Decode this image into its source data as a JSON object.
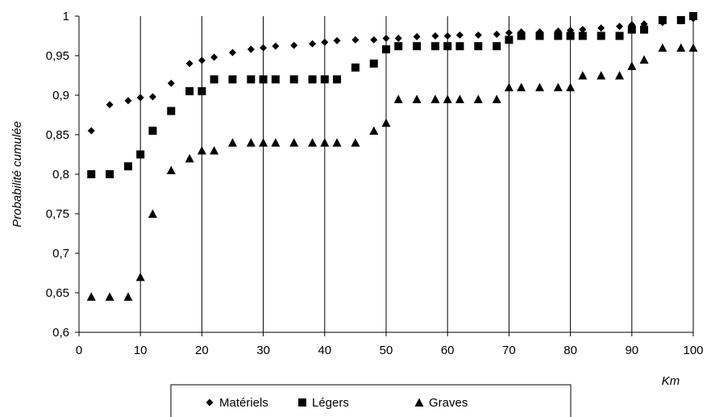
{
  "chart_data": {
    "type": "scatter",
    "title": "",
    "xlabel": "Km",
    "ylabel": "Probabilité cumulée",
    "xlim": [
      0,
      100
    ],
    "ylim": [
      0.6,
      1
    ],
    "x_ticks": [
      0,
      10,
      20,
      30,
      40,
      50,
      60,
      70,
      80,
      90,
      100
    ],
    "y_ticks": [
      0.6,
      0.65,
      0.7,
      0.75,
      0.8,
      0.85,
      0.9,
      0.95,
      1
    ],
    "x_tick_labels": [
      "0",
      "10",
      "20",
      "30",
      "40",
      "50",
      "60",
      "70",
      "80",
      "90",
      "100"
    ],
    "y_tick_labels": [
      "0,6",
      "0,65",
      "0,7",
      "0,75",
      "0,8",
      "0,85",
      "0,9",
      "0,95",
      "1"
    ],
    "grid": "vertical",
    "legend_position": "bottom",
    "series": [
      {
        "name": "Matériels",
        "marker": "diamond",
        "color": "#000000",
        "points": [
          [
            2,
            0.855
          ],
          [
            5,
            0.888
          ],
          [
            8,
            0.893
          ],
          [
            10,
            0.897
          ],
          [
            12,
            0.898
          ],
          [
            15,
            0.915
          ],
          [
            18,
            0.94
          ],
          [
            20,
            0.944
          ],
          [
            22,
            0.948
          ],
          [
            25,
            0.954
          ],
          [
            28,
            0.958
          ],
          [
            30,
            0.96
          ],
          [
            32,
            0.962
          ],
          [
            35,
            0.963
          ],
          [
            38,
            0.965
          ],
          [
            40,
            0.967
          ],
          [
            42,
            0.969
          ],
          [
            45,
            0.97
          ],
          [
            48,
            0.97
          ],
          [
            50,
            0.972
          ],
          [
            52,
            0.972
          ],
          [
            55,
            0.974
          ],
          [
            58,
            0.975
          ],
          [
            60,
            0.975
          ],
          [
            62,
            0.976
          ],
          [
            65,
            0.976
          ],
          [
            68,
            0.977
          ],
          [
            70,
            0.979
          ],
          [
            72,
            0.98
          ],
          [
            75,
            0.98
          ],
          [
            78,
            0.981
          ],
          [
            80,
            0.982
          ],
          [
            82,
            0.983
          ],
          [
            85,
            0.985
          ],
          [
            88,
            0.987
          ],
          [
            90,
            0.989
          ],
          [
            92,
            0.99
          ],
          [
            95,
            0.992
          ],
          [
            98,
            0.994
          ],
          [
            100,
            0.997
          ]
        ]
      },
      {
        "name": "Légers",
        "marker": "square",
        "color": "#000000",
        "points": [
          [
            2,
            0.8
          ],
          [
            5,
            0.8
          ],
          [
            8,
            0.81
          ],
          [
            10,
            0.825
          ],
          [
            12,
            0.855
          ],
          [
            15,
            0.88
          ],
          [
            18,
            0.905
          ],
          [
            20,
            0.905
          ],
          [
            22,
            0.92
          ],
          [
            25,
            0.92
          ],
          [
            28,
            0.92
          ],
          [
            30,
            0.92
          ],
          [
            32,
            0.92
          ],
          [
            35,
            0.92
          ],
          [
            38,
            0.92
          ],
          [
            40,
            0.92
          ],
          [
            42,
            0.92
          ],
          [
            45,
            0.935
          ],
          [
            48,
            0.94
          ],
          [
            50,
            0.958
          ],
          [
            52,
            0.962
          ],
          [
            55,
            0.962
          ],
          [
            58,
            0.962
          ],
          [
            60,
            0.962
          ],
          [
            62,
            0.962
          ],
          [
            65,
            0.962
          ],
          [
            68,
            0.962
          ],
          [
            70,
            0.97
          ],
          [
            72,
            0.975
          ],
          [
            75,
            0.975
          ],
          [
            78,
            0.975
          ],
          [
            80,
            0.975
          ],
          [
            82,
            0.975
          ],
          [
            85,
            0.975
          ],
          [
            88,
            0.975
          ],
          [
            90,
            0.983
          ],
          [
            92,
            0.983
          ],
          [
            95,
            0.995
          ],
          [
            98,
            0.995
          ],
          [
            100,
            1.0
          ]
        ]
      },
      {
        "name": "Graves",
        "marker": "triangle",
        "color": "#000000",
        "points": [
          [
            2,
            0.645
          ],
          [
            5,
            0.645
          ],
          [
            8,
            0.645
          ],
          [
            10,
            0.67
          ],
          [
            12,
            0.75
          ],
          [
            15,
            0.805
          ],
          [
            18,
            0.82
          ],
          [
            20,
            0.83
          ],
          [
            22,
            0.83
          ],
          [
            25,
            0.84
          ],
          [
            28,
            0.84
          ],
          [
            30,
            0.84
          ],
          [
            32,
            0.84
          ],
          [
            35,
            0.84
          ],
          [
            38,
            0.84
          ],
          [
            40,
            0.84
          ],
          [
            42,
            0.84
          ],
          [
            45,
            0.84
          ],
          [
            48,
            0.855
          ],
          [
            50,
            0.865
          ],
          [
            52,
            0.895
          ],
          [
            55,
            0.895
          ],
          [
            58,
            0.895
          ],
          [
            60,
            0.895
          ],
          [
            62,
            0.895
          ],
          [
            65,
            0.895
          ],
          [
            68,
            0.895
          ],
          [
            70,
            0.91
          ],
          [
            72,
            0.91
          ],
          [
            75,
            0.91
          ],
          [
            78,
            0.91
          ],
          [
            80,
            0.91
          ],
          [
            82,
            0.925
          ],
          [
            85,
            0.925
          ],
          [
            88,
            0.925
          ],
          [
            90,
            0.937
          ],
          [
            92,
            0.945
          ],
          [
            95,
            0.96
          ],
          [
            98,
            0.96
          ],
          [
            100,
            0.96
          ]
        ]
      }
    ]
  }
}
